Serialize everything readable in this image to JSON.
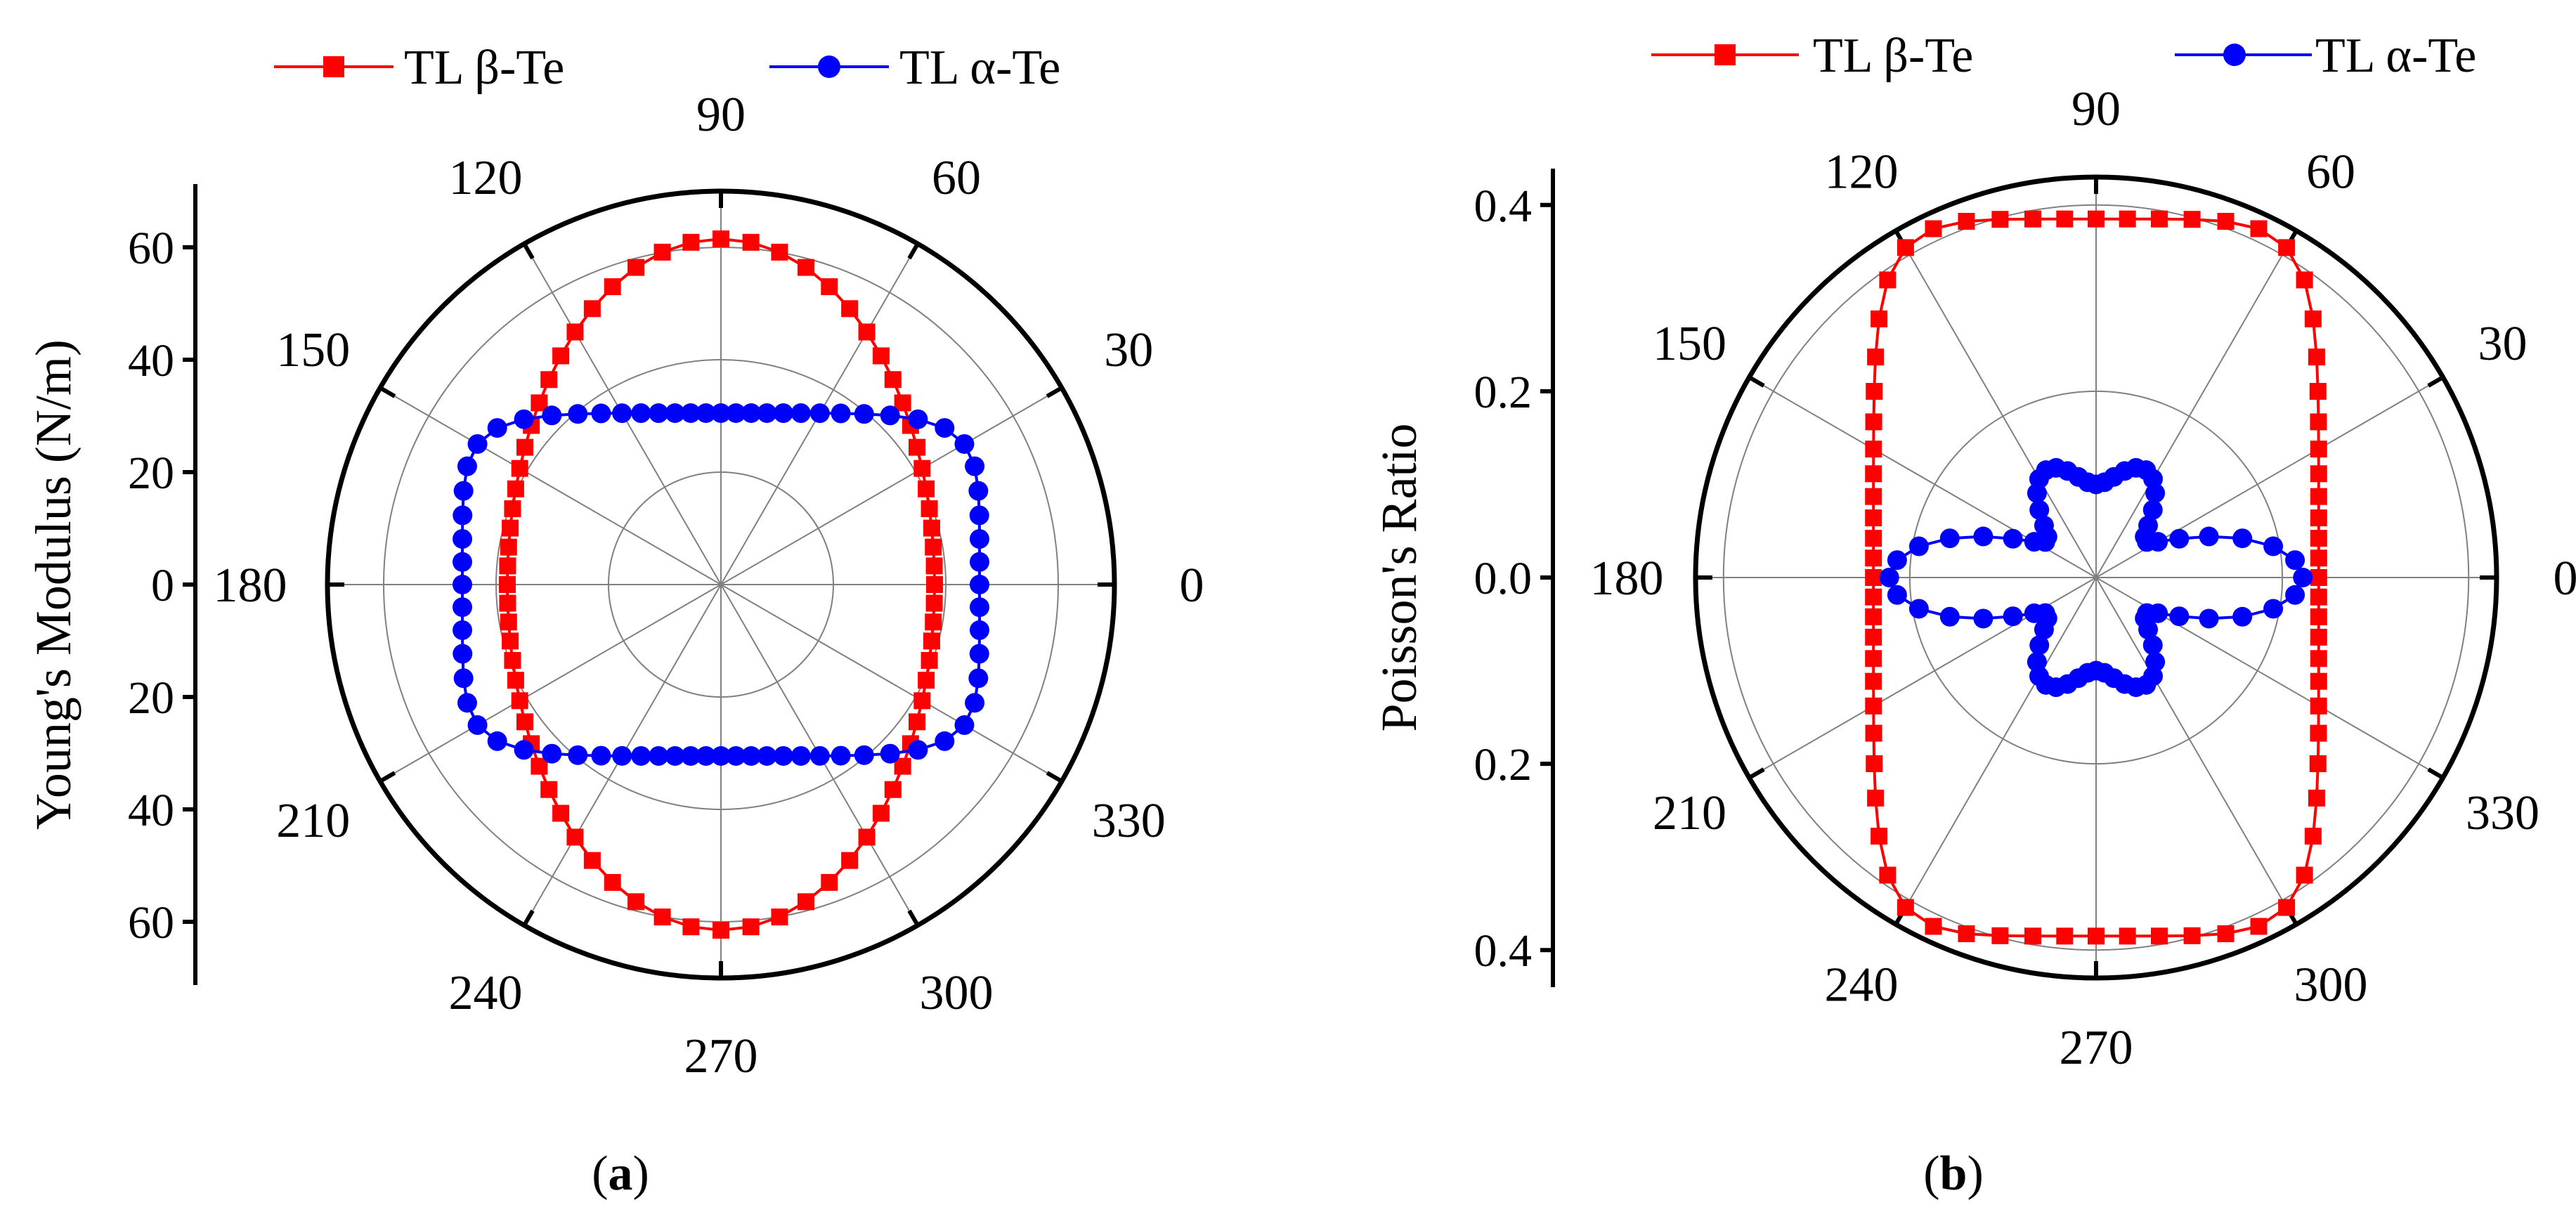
{
  "figure": {
    "colors": {
      "beta": "#ff0000",
      "alpha": "#0000ff",
      "axis": "#000000",
      "grid": "#808080"
    },
    "angle_unit": "degrees"
  },
  "chart_data": [
    {
      "panel": "a",
      "panel_label": "a",
      "type": "polar-line",
      "ylabel": "Young's Modulus (N/m)",
      "radial_axis": {
        "min": 0,
        "max": 70,
        "ticks": [
          0,
          20,
          40,
          60
        ],
        "tick_labels": [
          "60",
          "40",
          "20",
          "0",
          "20",
          "40",
          "60"
        ],
        "grid_rings": [
          20,
          40,
          60,
          70
        ]
      },
      "angle_ticks": [
        "0",
        "30",
        "60",
        "90",
        "120",
        "150",
        "180",
        "210",
        "240",
        "270",
        "300",
        "330"
      ],
      "legend": [
        "TL β-Te",
        "TL α-Te"
      ],
      "series": [
        {
          "name": "TL β-Te",
          "marker": "square",
          "color": "#ff0000",
          "model": {
            "c": 38.0,
            "s": 61.5,
            "p": 0
          }
        },
        {
          "name": "TL α-Te",
          "marker": "circle",
          "color": "#0000ff",
          "model": {
            "c": 46.0,
            "s": 30.5,
            "p": 2
          }
        }
      ]
    },
    {
      "panel": "b",
      "panel_label": "b",
      "type": "polar-line",
      "ylabel": "Poisson's Ratio",
      "radial_axis": {
        "min": 0,
        "max": 0.43,
        "ticks": [
          0,
          0.2,
          0.4
        ],
        "tick_labels": [
          "0.4",
          "0.2",
          "0.0",
          "0.2",
          "0.4"
        ],
        "grid_rings": [
          0.2,
          0.4,
          0.43
        ]
      },
      "angle_ticks": [
        "0",
        "30",
        "60",
        "90",
        "120",
        "150",
        "180",
        "210",
        "240",
        "270",
        "300",
        "330"
      ],
      "legend": [
        "TL β-Te",
        "TL α-Te"
      ],
      "series": [
        {
          "name": "TL β-Te",
          "marker": "square",
          "color": "#ff0000",
          "model": {
            "c": 0.239,
            "s": 0.385,
            "p": 2
          }
        },
        {
          "name": "TL α-Te",
          "marker": "circle",
          "color": "#0000ff",
          "model": {
            "a0": 0.12,
            "a2": -0.01,
            "a4": 0.041,
            "b4": 0.071
          }
        }
      ]
    }
  ]
}
